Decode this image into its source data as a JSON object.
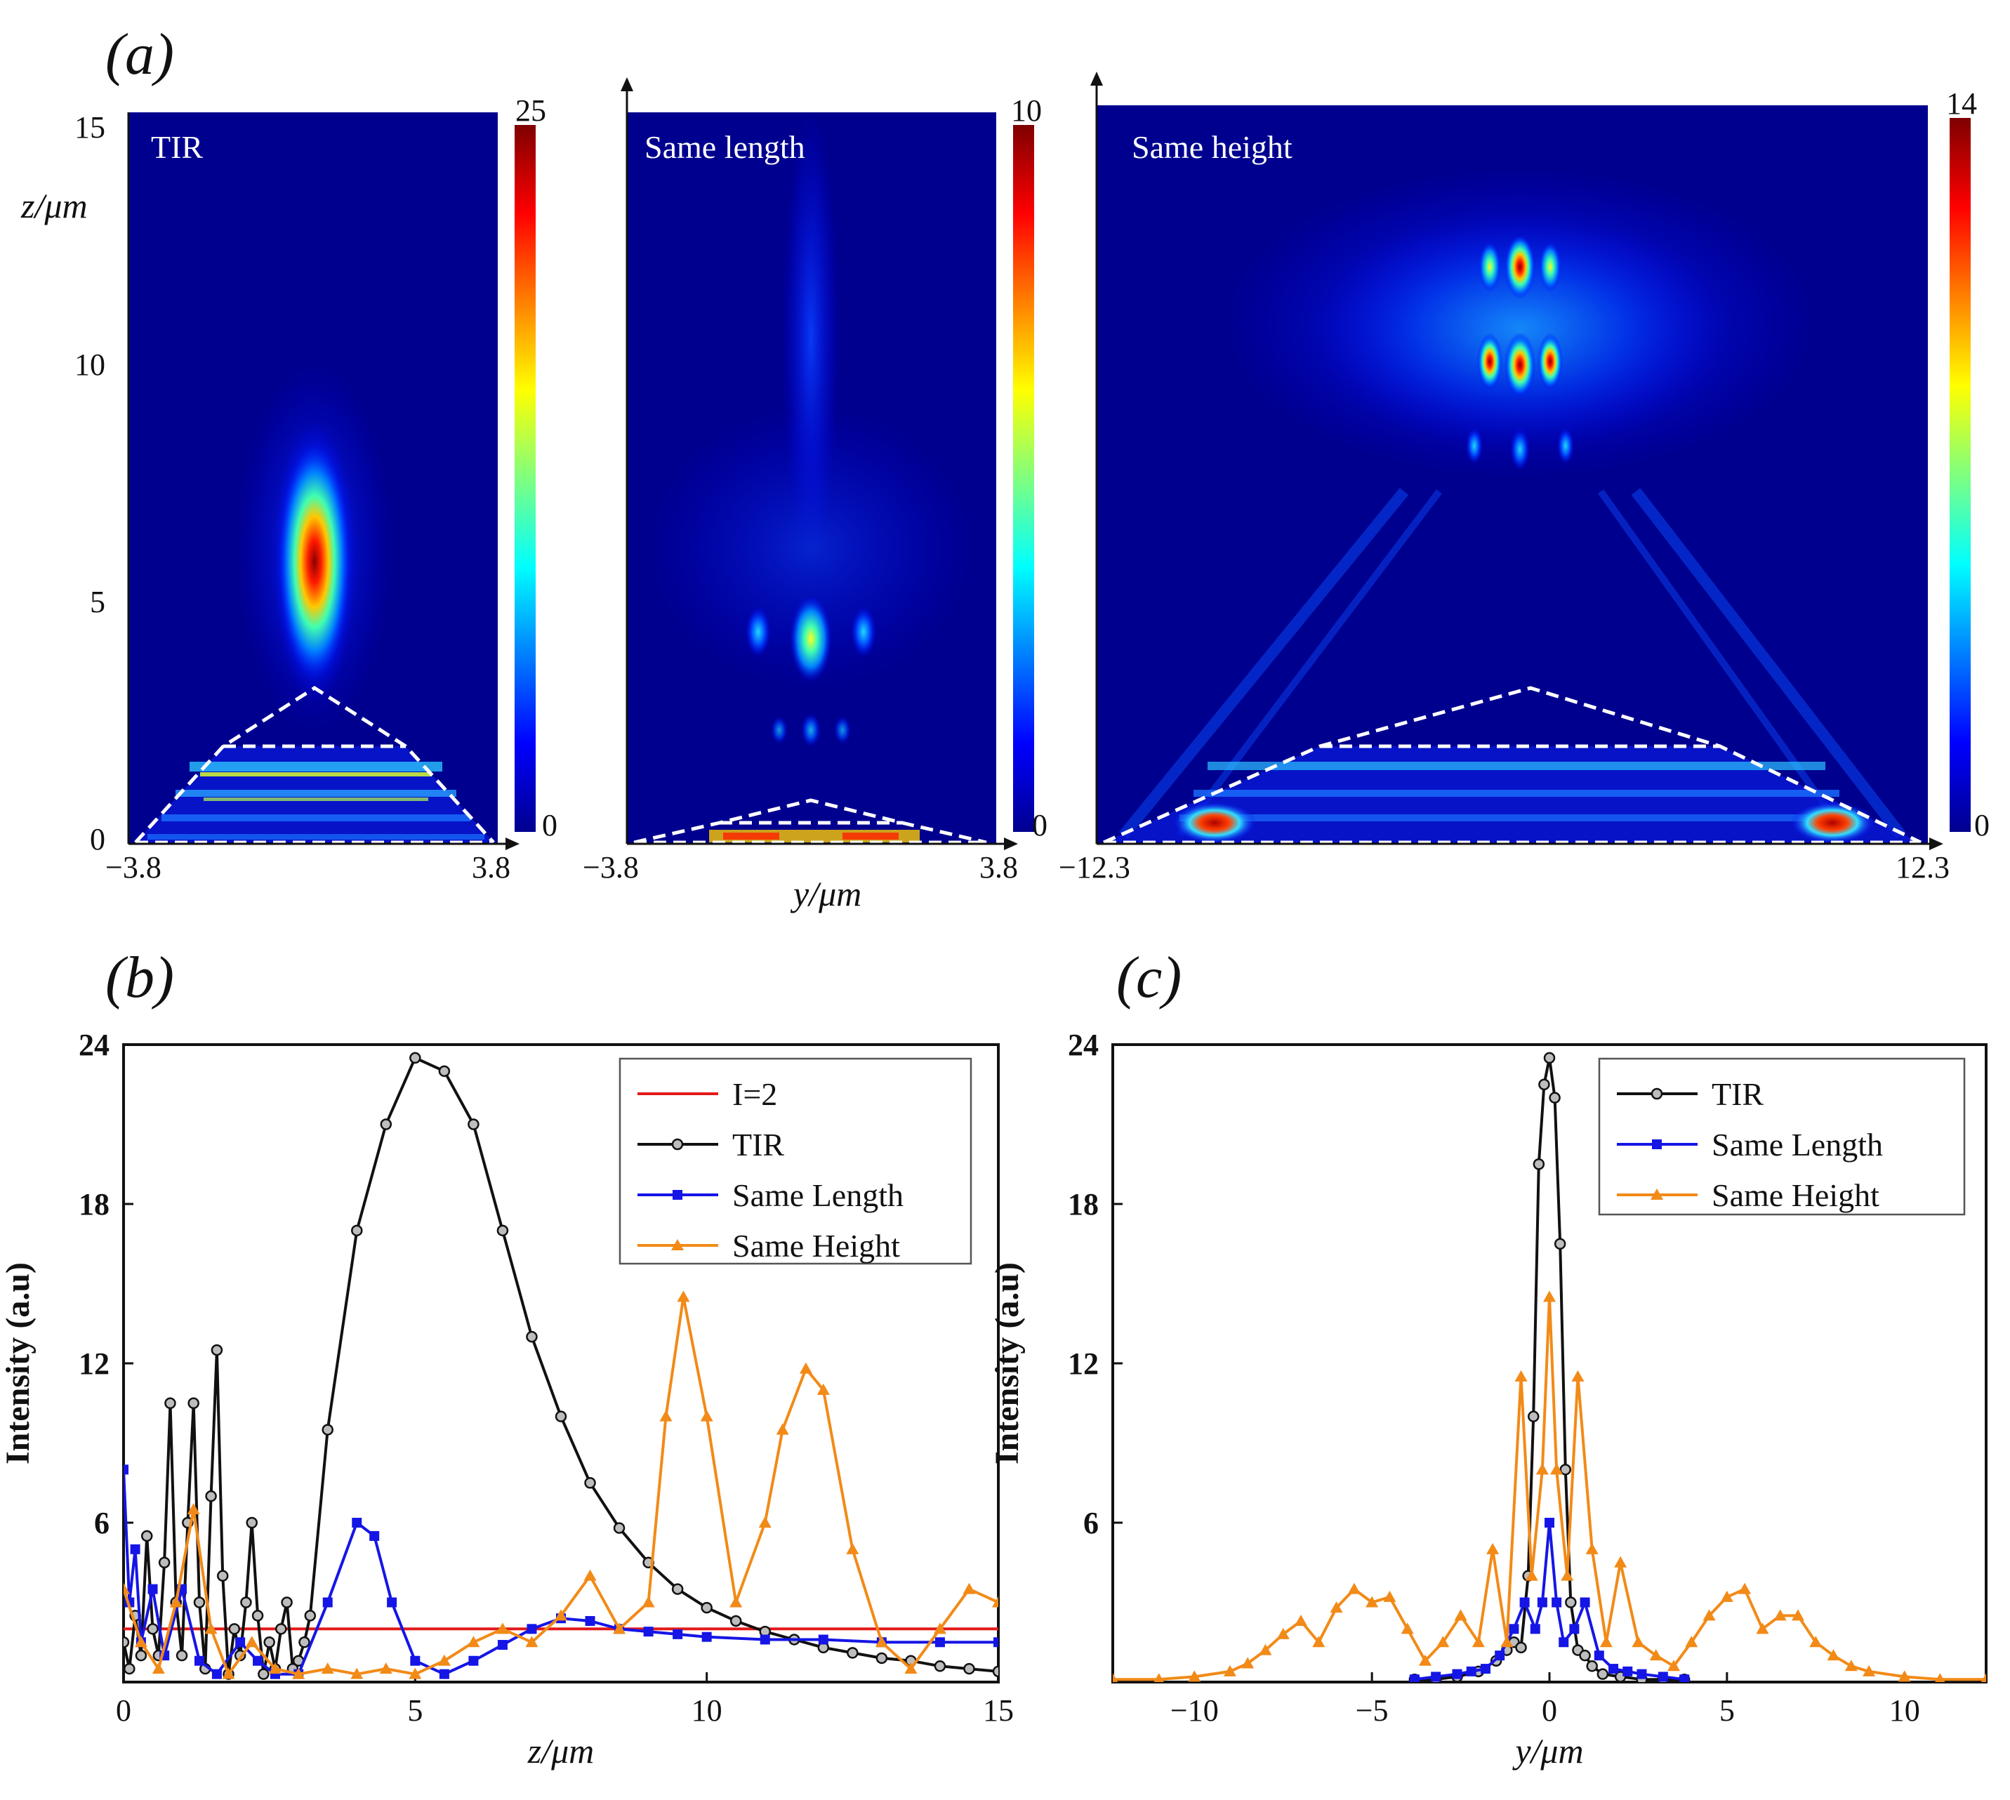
{
  "colors": {
    "tir": "#111111",
    "same_length": "#1515e6",
    "same_height": "#f28a17",
    "threshold": "#e31a1a",
    "panel_bg": "#00008f"
  },
  "panel_a": {
    "caption": "(a)",
    "z_label": "z/μm",
    "y_label": "y/μm",
    "z_ticks": [
      "0",
      "5",
      "10",
      "15"
    ],
    "maps": [
      {
        "label": "TIR",
        "y_min": "−3.8",
        "y_max": "3.8",
        "colorbar": {
          "max": "25",
          "min": "0"
        }
      },
      {
        "label": "Same length",
        "y_min": "−3.8",
        "y_max": "3.8",
        "colorbar": {
          "max": "10",
          "min": "0"
        }
      },
      {
        "label": "Same height",
        "y_min": "−12.3",
        "y_max": "12.3",
        "colorbar": {
          "max": "14",
          "min": "0"
        }
      }
    ]
  },
  "chart_data": [
    {
      "type": "line",
      "panel": "(b)",
      "title": "",
      "xlabel": "z/μm",
      "ylabel": "Intensity (a.u)",
      "xlim": [
        0,
        15
      ],
      "ylim": [
        0,
        24
      ],
      "xticks": [
        "0",
        "5",
        "10",
        "15"
      ],
      "yticks": [
        "6",
        "12",
        "18",
        "24"
      ],
      "legend": "top-right",
      "legend_entries": [
        "I=2",
        "TIR",
        "Same Length",
        "Same Height"
      ],
      "series": [
        {
          "name": "I=2",
          "marker": "none",
          "x": [
            0,
            15
          ],
          "y": [
            2,
            2
          ]
        },
        {
          "name": "TIR",
          "marker": "circle",
          "x": [
            0,
            0.1,
            0.2,
            0.3,
            0.4,
            0.5,
            0.6,
            0.7,
            0.8,
            0.9,
            1.0,
            1.1,
            1.2,
            1.3,
            1.4,
            1.5,
            1.6,
            1.7,
            1.8,
            1.9,
            2.0,
            2.1,
            2.2,
            2.3,
            2.4,
            2.5,
            2.6,
            2.7,
            2.8,
            2.9,
            3.0,
            3.1,
            3.2,
            3.5,
            4.0,
            4.5,
            5.0,
            5.5,
            6.0,
            6.5,
            7.0,
            7.5,
            8.0,
            8.5,
            9.0,
            9.5,
            10.0,
            10.5,
            11.0,
            11.5,
            12.0,
            12.5,
            13.0,
            13.5,
            14.0,
            14.5,
            15.0
          ],
          "y": [
            1.5,
            0.5,
            2.5,
            1.0,
            5.5,
            2.0,
            1.0,
            4.5,
            10.5,
            3.0,
            1.0,
            6.0,
            10.5,
            3.0,
            0.5,
            7.0,
            12.5,
            4.0,
            0.3,
            2.0,
            1.0,
            3.0,
            6.0,
            2.5,
            0.3,
            1.5,
            0.5,
            2.0,
            3.0,
            0.5,
            0.8,
            1.5,
            2.5,
            9.5,
            17,
            21,
            23.5,
            23,
            21,
            17,
            13,
            10,
            7.5,
            5.8,
            4.5,
            3.5,
            2.8,
            2.3,
            1.9,
            1.6,
            1.3,
            1.1,
            0.9,
            0.8,
            0.6,
            0.5,
            0.4
          ]
        },
        {
          "name": "Same Length",
          "marker": "square",
          "x": [
            0,
            0.1,
            0.2,
            0.3,
            0.5,
            0.7,
            1.0,
            1.3,
            1.6,
            2.0,
            2.3,
            2.6,
            3.0,
            3.5,
            4.0,
            4.3,
            4.6,
            5.0,
            5.5,
            6.0,
            6.5,
            7.0,
            7.5,
            8.0,
            8.5,
            9.0,
            9.5,
            10.0,
            11.0,
            12.0,
            13.0,
            14.0,
            15.0
          ],
          "y": [
            8,
            3,
            5,
            1.5,
            3.5,
            1.0,
            3.5,
            0.8,
            0.3,
            1.5,
            0.8,
            0.3,
            0.3,
            3.0,
            6.0,
            5.5,
            3.0,
            0.8,
            0.3,
            0.8,
            1.4,
            2.0,
            2.4,
            2.3,
            2.0,
            1.9,
            1.8,
            1.7,
            1.6,
            1.6,
            1.5,
            1.5,
            1.5
          ]
        },
        {
          "name": "Same Height",
          "marker": "triangle",
          "x": [
            0,
            0.3,
            0.6,
            0.9,
            1.2,
            1.5,
            1.8,
            2.2,
            2.6,
            3.0,
            3.5,
            4.0,
            4.5,
            5.0,
            5.5,
            6.0,
            6.5,
            7.0,
            7.5,
            8.0,
            8.5,
            9.0,
            9.3,
            9.6,
            10.0,
            10.5,
            11.0,
            11.3,
            11.7,
            12.0,
            12.5,
            13.0,
            13.5,
            14.0,
            14.5,
            15.0
          ],
          "y": [
            3.5,
            1.5,
            0.5,
            3.0,
            6.5,
            2.0,
            0.3,
            1.5,
            0.5,
            0.3,
            0.5,
            0.3,
            0.5,
            0.3,
            0.8,
            1.5,
            2.0,
            1.5,
            2.5,
            4.0,
            2.0,
            3.0,
            10,
            14.5,
            10,
            3.0,
            6.0,
            9.5,
            11.8,
            11.0,
            5.0,
            1.5,
            0.5,
            2.0,
            3.5,
            3.0
          ]
        }
      ]
    },
    {
      "type": "line",
      "panel": "(c)",
      "title": "",
      "xlabel": "y/μm",
      "ylabel": "Intensity (a.u)",
      "xlim": [
        -12.3,
        12.3
      ],
      "ylim": [
        0,
        24
      ],
      "xticks": [
        "−10",
        "−5",
        "0",
        "5",
        "10"
      ],
      "yticks": [
        "6",
        "12",
        "18",
        "24"
      ],
      "legend": "top-right",
      "legend_entries": [
        "TIR",
        "Same Length",
        "Same Height"
      ],
      "series": [
        {
          "name": "TIR",
          "marker": "circle",
          "x": [
            -3.8,
            -3.2,
            -2.6,
            -2.0,
            -1.5,
            -1.2,
            -1.0,
            -0.8,
            -0.6,
            -0.45,
            -0.3,
            -0.15,
            0,
            0.15,
            0.3,
            0.45,
            0.6,
            0.8,
            1.0,
            1.2,
            1.5,
            2.0,
            2.6,
            3.2,
            3.8
          ],
          "y": [
            0.1,
            0.1,
            0.2,
            0.4,
            0.8,
            1.2,
            1.5,
            1.3,
            4,
            10,
            19.5,
            22.5,
            23.5,
            22,
            16.5,
            8,
            3,
            1.2,
            1.0,
            0.6,
            0.3,
            0.2,
            0.1,
            0.1,
            0.1
          ]
        },
        {
          "name": "Same Length",
          "marker": "square",
          "x": [
            -3.8,
            -3.2,
            -2.6,
            -2.2,
            -1.8,
            -1.4,
            -1.0,
            -0.7,
            -0.4,
            -0.2,
            0,
            0.2,
            0.4,
            0.7,
            1.0,
            1.4,
            1.8,
            2.2,
            2.6,
            3.2,
            3.8
          ],
          "y": [
            0.1,
            0.2,
            0.3,
            0.4,
            0.5,
            1.0,
            2.0,
            3.0,
            2.0,
            3.0,
            6.0,
            3.0,
            1.5,
            2.0,
            3.0,
            1.0,
            0.5,
            0.4,
            0.3,
            0.2,
            0.1
          ]
        },
        {
          "name": "Same Height",
          "marker": "triangle",
          "x": [
            -12.3,
            -11,
            -10,
            -9,
            -8.5,
            -8,
            -7.5,
            -7,
            -6.5,
            -6,
            -5.5,
            -5,
            -4.5,
            -4,
            -3.5,
            -3,
            -2.5,
            -2,
            -1.6,
            -1.2,
            -0.8,
            -0.5,
            -0.2,
            0,
            0.2,
            0.5,
            0.8,
            1.2,
            1.6,
            2.0,
            2.5,
            3,
            3.5,
            4,
            4.5,
            5,
            5.5,
            6,
            6.5,
            7,
            7.5,
            8,
            8.5,
            9,
            10,
            11,
            12.3
          ],
          "y": [
            0.1,
            0.1,
            0.2,
            0.4,
            0.7,
            1.2,
            1.8,
            2.3,
            1.5,
            2.8,
            3.5,
            3.0,
            3.2,
            2.0,
            0.8,
            1.5,
            2.5,
            1.5,
            5.0,
            1.5,
            11.5,
            4.0,
            8.0,
            14.5,
            8.0,
            4.0,
            11.5,
            5.0,
            1.5,
            4.5,
            1.5,
            1.0,
            0.6,
            1.5,
            2.5,
            3.2,
            3.5,
            2.0,
            2.5,
            2.5,
            1.5,
            1.0,
            0.6,
            0.4,
            0.2,
            0.1,
            0.1
          ]
        }
      ]
    }
  ]
}
